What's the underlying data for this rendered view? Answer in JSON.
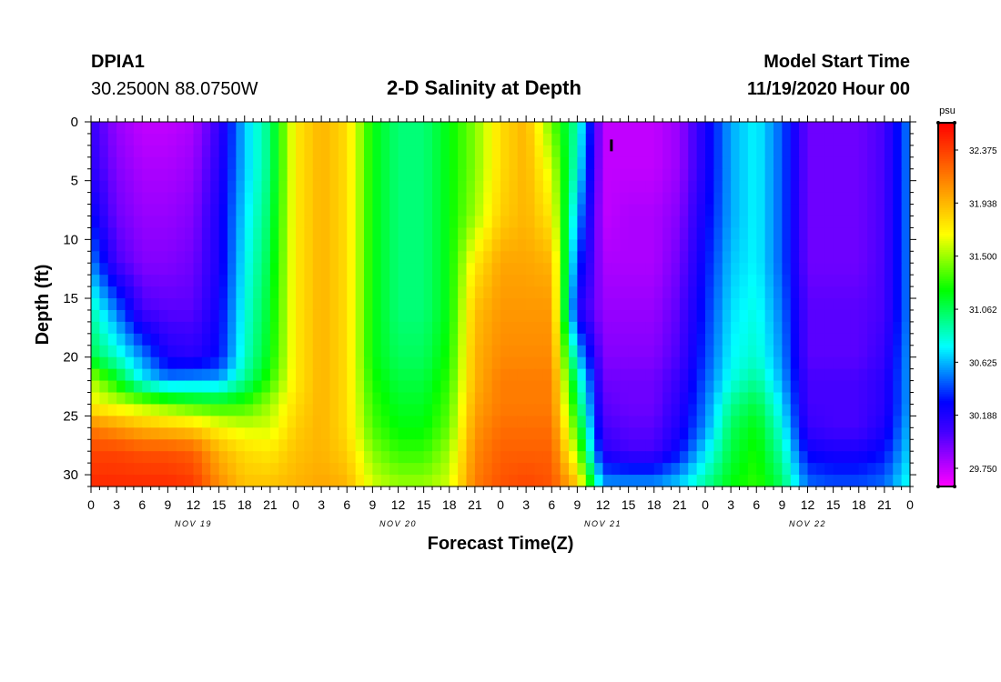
{
  "header": {
    "station_id": "DPIA1",
    "coordinates": "30.2500N 88.0750W",
    "title": "2-D Salinity at Depth",
    "start_label": "Model Start Time",
    "start_value": "11/19/2020 Hour 00"
  },
  "chart_data": {
    "type": "heatmap",
    "title": "2-D Salinity at Depth",
    "xlabel": "Forecast Time(Z)",
    "ylabel": "Depth (ft)",
    "x_range_hours": [
      0,
      96
    ],
    "y_range_ft": [
      0,
      31
    ],
    "y_ticks": [
      0,
      5,
      10,
      15,
      20,
      25,
      30
    ],
    "x_tick_labels": [
      "0",
      "3",
      "6",
      "9",
      "12",
      "15",
      "18",
      "21",
      "0",
      "3",
      "6",
      "9",
      "12",
      "15",
      "18",
      "21",
      "0",
      "3",
      "6",
      "9",
      "12",
      "15",
      "18",
      "21",
      "0",
      "3",
      "6",
      "9",
      "12",
      "15",
      "18",
      "21",
      "0"
    ],
    "day_labels": [
      {
        "label": "NOV 19",
        "hour": 12
      },
      {
        "label": "NOV 20",
        "hour": 36
      },
      {
        "label": "NOV 21",
        "hour": 60
      },
      {
        "label": "NOV 22",
        "hour": 84
      }
    ],
    "colorbar": {
      "unit": "psu",
      "min": 29.6,
      "max": 32.6,
      "tick_values": [
        29.75,
        30.188,
        30.625,
        31.062,
        31.5,
        31.938,
        32.375
      ],
      "tick_labels": [
        "29.750",
        "30.188",
        "30.625",
        "31.062",
        "31.500",
        "31.938",
        "32.375"
      ]
    },
    "salinity_psu": {
      "hours": [
        0,
        3,
        6,
        9,
        12,
        15,
        18,
        21,
        24,
        27,
        30,
        33,
        36,
        39,
        42,
        45,
        48,
        51,
        54,
        57,
        60,
        63,
        66,
        69,
        72,
        75,
        78,
        81,
        84,
        87,
        90,
        93,
        96
      ],
      "depths_ft": [
        0,
        4,
        8,
        12,
        16,
        20,
        22,
        24,
        26,
        28,
        31
      ],
      "values": [
        [
          30.1,
          29.85,
          29.75,
          29.75,
          29.8,
          30.1,
          30.65,
          31.0,
          31.75,
          31.95,
          31.8,
          31.2,
          31.0,
          31.0,
          31.2,
          31.45,
          31.8,
          31.95,
          31.4,
          30.9,
          29.75,
          29.75,
          29.75,
          29.85,
          30.2,
          30.6,
          30.75,
          30.45,
          29.95,
          29.95,
          29.95,
          30.05,
          30.55
        ],
        [
          30.15,
          29.9,
          29.8,
          29.8,
          29.85,
          30.15,
          30.65,
          31.0,
          31.75,
          31.95,
          31.8,
          31.2,
          31.0,
          31.0,
          31.2,
          31.45,
          31.8,
          31.95,
          31.6,
          30.8,
          29.75,
          29.75,
          29.75,
          29.85,
          30.2,
          30.6,
          30.75,
          30.45,
          29.95,
          29.95,
          29.95,
          30.05,
          30.55
        ],
        [
          30.3,
          29.95,
          29.85,
          29.85,
          29.9,
          30.2,
          30.7,
          31.05,
          31.75,
          31.95,
          31.8,
          31.2,
          31.0,
          31.0,
          31.2,
          31.5,
          31.85,
          31.95,
          31.75,
          30.6,
          29.75,
          29.8,
          29.8,
          29.9,
          30.25,
          30.6,
          30.75,
          30.45,
          29.95,
          29.95,
          29.95,
          30.05,
          30.55
        ],
        [
          30.55,
          30.05,
          29.9,
          29.9,
          29.95,
          30.2,
          30.75,
          31.1,
          31.75,
          31.95,
          31.8,
          31.2,
          31.0,
          31.0,
          31.2,
          31.75,
          32.0,
          32.0,
          31.95,
          30.4,
          29.8,
          29.8,
          29.8,
          29.95,
          30.3,
          30.65,
          30.75,
          30.45,
          29.95,
          29.95,
          29.95,
          30.05,
          30.55
        ],
        [
          30.9,
          30.5,
          30.05,
          30.0,
          30.0,
          30.25,
          30.8,
          31.15,
          31.75,
          31.95,
          31.8,
          31.2,
          31.0,
          31.0,
          31.2,
          31.9,
          32.05,
          32.05,
          32.05,
          30.2,
          29.85,
          29.85,
          29.85,
          30.0,
          30.35,
          30.7,
          30.8,
          30.5,
          30.0,
          30.0,
          30.0,
          30.05,
          30.55
        ],
        [
          31.1,
          30.85,
          30.55,
          30.2,
          30.15,
          30.3,
          30.85,
          31.2,
          31.75,
          31.95,
          31.8,
          31.2,
          31.05,
          31.05,
          31.25,
          31.95,
          32.1,
          32.1,
          32.1,
          30.7,
          29.9,
          29.9,
          29.9,
          30.05,
          30.4,
          30.75,
          30.85,
          30.55,
          30.0,
          30.0,
          30.0,
          30.1,
          30.6
        ],
        [
          31.55,
          31.2,
          30.75,
          30.55,
          30.6,
          30.6,
          30.95,
          31.3,
          31.75,
          31.95,
          31.8,
          31.25,
          31.1,
          31.1,
          31.3,
          31.95,
          32.15,
          32.15,
          32.15,
          30.95,
          29.95,
          29.95,
          29.95,
          30.1,
          30.45,
          30.8,
          30.95,
          30.6,
          30.05,
          30.05,
          30.05,
          30.15,
          30.6
        ],
        [
          31.7,
          31.6,
          31.5,
          31.4,
          31.3,
          31.25,
          31.3,
          31.5,
          31.8,
          31.95,
          31.8,
          31.3,
          31.15,
          31.15,
          31.35,
          32.0,
          32.15,
          32.15,
          32.15,
          31.1,
          30.0,
          29.95,
          29.95,
          30.15,
          30.5,
          30.95,
          31.1,
          30.7,
          30.05,
          30.05,
          30.05,
          30.15,
          30.6
        ],
        [
          32.15,
          32.05,
          31.95,
          31.9,
          31.85,
          31.7,
          31.6,
          31.6,
          31.85,
          31.95,
          31.8,
          31.35,
          31.2,
          31.2,
          31.4,
          32.05,
          32.2,
          32.2,
          32.2,
          31.3,
          30.05,
          30.0,
          30.0,
          30.2,
          30.55,
          31.05,
          31.2,
          30.8,
          30.1,
          30.05,
          30.05,
          30.2,
          30.65
        ],
        [
          32.35,
          32.35,
          32.3,
          32.3,
          32.25,
          31.95,
          31.8,
          31.75,
          31.9,
          31.95,
          31.85,
          31.45,
          31.3,
          31.3,
          31.5,
          32.1,
          32.25,
          32.25,
          32.25,
          31.5,
          30.15,
          30.05,
          30.05,
          30.3,
          30.7,
          31.1,
          31.25,
          30.9,
          30.25,
          30.2,
          30.2,
          30.3,
          30.7
        ],
        [
          32.45,
          32.45,
          32.45,
          32.45,
          32.4,
          32.1,
          31.9,
          31.9,
          31.95,
          32.0,
          31.95,
          31.6,
          31.5,
          31.5,
          31.6,
          32.15,
          32.3,
          32.35,
          32.3,
          31.9,
          30.6,
          30.6,
          30.6,
          30.7,
          30.95,
          31.2,
          31.3,
          31.05,
          30.5,
          30.45,
          30.45,
          30.5,
          30.8
        ]
      ]
    },
    "annotation": {
      "type": "marker",
      "hour": 61,
      "depth_ft_top": 1.5,
      "depth_ft_bottom": 2.5
    }
  },
  "colors": {
    "scale": [
      "#ff00ff",
      "#9f00ff",
      "#3f00ff",
      "#0000ff",
      "#007fff",
      "#00ffff",
      "#00ff7f",
      "#00ff00",
      "#7fff00",
      "#ffff00",
      "#ffbf00",
      "#ff7f00",
      "#ff3f00",
      "#ff0000"
    ],
    "text": "#000000",
    "frame": "#000000"
  }
}
